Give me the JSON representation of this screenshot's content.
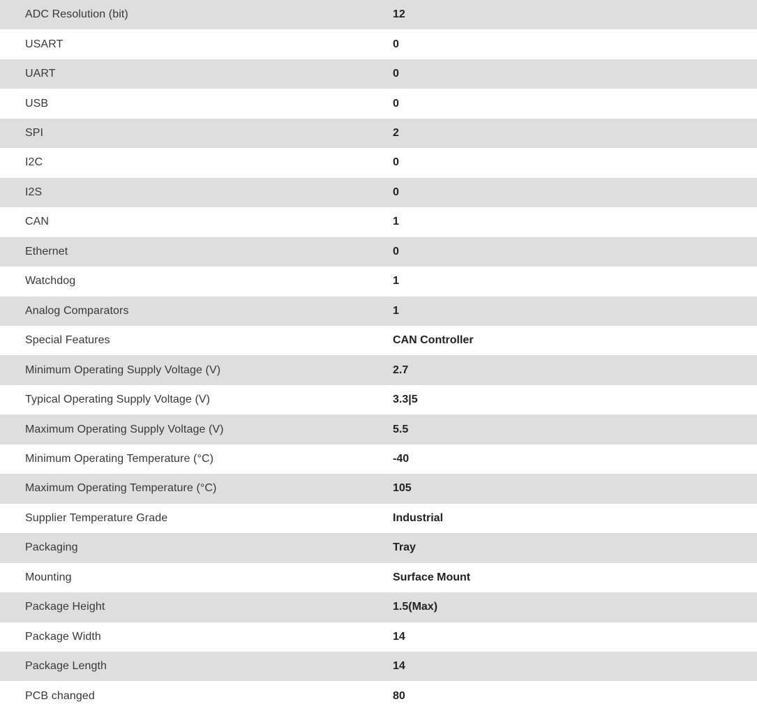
{
  "table": {
    "stripe_color": "#dedede",
    "row_color": "#ffffff",
    "label_color": "#383838",
    "value_color": "#222222",
    "columns": [
      "attribute",
      "value"
    ],
    "rows": [
      {
        "label": "ADC Resolution (bit)",
        "value": "12"
      },
      {
        "label": "USART",
        "value": "0"
      },
      {
        "label": "UART",
        "value": "0"
      },
      {
        "label": "USB",
        "value": "0"
      },
      {
        "label": "SPI",
        "value": "2"
      },
      {
        "label": "I2C",
        "value": "0"
      },
      {
        "label": "I2S",
        "value": "0"
      },
      {
        "label": "CAN",
        "value": "1"
      },
      {
        "label": "Ethernet",
        "value": "0"
      },
      {
        "label": "Watchdog",
        "value": "1"
      },
      {
        "label": "Analog Comparators",
        "value": "1"
      },
      {
        "label": "Special Features",
        "value": "CAN Controller"
      },
      {
        "label": "Minimum Operating Supply Voltage (V)",
        "value": "2.7"
      },
      {
        "label": "Typical Operating Supply Voltage (V)",
        "value": "3.3|5"
      },
      {
        "label": "Maximum Operating Supply Voltage (V)",
        "value": "5.5"
      },
      {
        "label": "Minimum Operating Temperature (°C)",
        "value": "-40"
      },
      {
        "label": "Maximum Operating Temperature (°C)",
        "value": "105"
      },
      {
        "label": "Supplier Temperature Grade",
        "value": "Industrial"
      },
      {
        "label": "Packaging",
        "value": "Tray"
      },
      {
        "label": "Mounting",
        "value": "Surface Mount"
      },
      {
        "label": "Package Height",
        "value": "1.5(Max)"
      },
      {
        "label": "Package Width",
        "value": "14"
      },
      {
        "label": "Package Length",
        "value": "14"
      },
      {
        "label": "PCB changed",
        "value": "80"
      }
    ]
  }
}
